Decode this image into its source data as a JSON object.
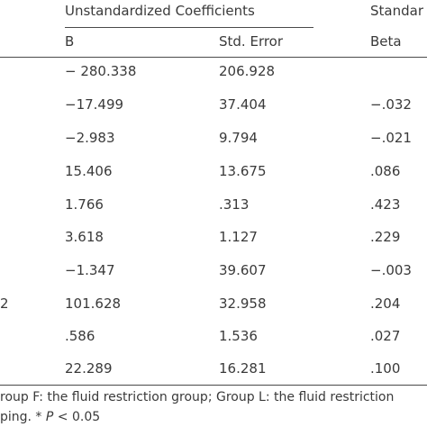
{
  "header": {
    "group_unstandardized": "Unstandardized Coefficients",
    "group_standardized": "Standar",
    "col_b": "B",
    "col_std_error": "Std. Error",
    "col_beta": "Beta"
  },
  "rows": [
    {
      "label": "",
      "b": "− 280.338",
      "se": "206.928",
      "beta": ""
    },
    {
      "label": "",
      "b": "−17.499",
      "se": "37.404",
      "beta": "−.032"
    },
    {
      "label": "",
      "b": "−2.983",
      "se": "9.794",
      "beta": "−.021"
    },
    {
      "label": "",
      "b": "15.406",
      "se": "13.675",
      "beta": ".086"
    },
    {
      "label": "",
      "b": "1.766",
      "se": ".313",
      "beta": ".423"
    },
    {
      "label": "",
      "b": "3.618",
      "se": "1.127",
      "beta": ".229"
    },
    {
      "label": "",
      "b": "−1.347",
      "se": "39.607",
      "beta": "−.003"
    },
    {
      "label": "2",
      "b": "101.628",
      "se": "32.958",
      "beta": ".204"
    },
    {
      "label": "",
      "b": ".586",
      "se": "1.536",
      "beta": ".027"
    },
    {
      "label": "",
      "b": "22.289",
      "se": "16.281",
      "beta": ".100"
    }
  ],
  "footnote": {
    "line1": "roup F: the fluid restriction group; Group L: the fluid restriction",
    "line2_prefix": "ping. * ",
    "line2_italic": "P",
    "line2_suffix": " < 0.05"
  }
}
